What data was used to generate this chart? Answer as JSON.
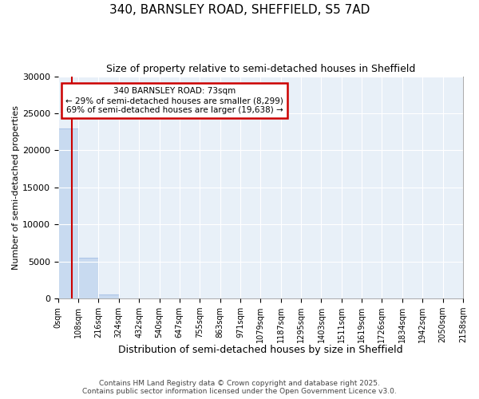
{
  "title_line1": "340, BARNSLEY ROAD, SHEFFIELD, S5 7AD",
  "title_line2": "Size of property relative to semi-detached houses in Sheffield",
  "xlabel": "Distribution of semi-detached houses by size in Sheffield",
  "ylabel": "Number of semi-detached properties",
  "annotation_title": "340 BARNSLEY ROAD: 73sqm",
  "annotation_line2": "← 29% of semi-detached houses are smaller (8,299)",
  "annotation_line3": "69% of semi-detached houses are larger (19,638) →",
  "footer_line1": "Contains HM Land Registry data © Crown copyright and database right 2025.",
  "footer_line2": "Contains public sector information licensed under the Open Government Licence v3.0.",
  "bin_edges": [
    0,
    108,
    216,
    324,
    432,
    540,
    647,
    755,
    863,
    971,
    1079,
    1187,
    1295,
    1403,
    1511,
    1619,
    1726,
    1834,
    1942,
    2050,
    2158
  ],
  "bin_counts": [
    23000,
    5500,
    500,
    0,
    0,
    0,
    0,
    0,
    0,
    0,
    0,
    0,
    0,
    0,
    0,
    0,
    0,
    0,
    0,
    0
  ],
  "property_size": 73,
  "bar_color": "#c8daf0",
  "bar_edgecolor": "#aec6e8",
  "vline_color": "#cc0000",
  "annotation_box_edgecolor": "#cc0000",
  "annotation_box_facecolor": "#ffffff",
  "ylim": [
    0,
    30000
  ],
  "yticks": [
    0,
    5000,
    10000,
    15000,
    20000,
    25000,
    30000
  ],
  "background_color": "#ffffff",
  "plot_bg_color": "#e8f0f8",
  "grid_color": "#ffffff"
}
